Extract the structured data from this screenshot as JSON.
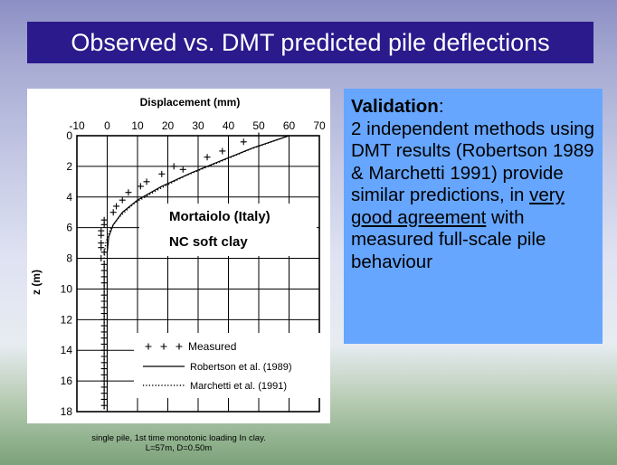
{
  "slide": {
    "title": "Observed vs. DMT predicted pile deflections"
  },
  "figure": {
    "overlay_line1": "Mortaiolo (Italy)",
    "overlay_line2": "NC soft clay"
  },
  "chart_data": {
    "type": "line",
    "xlabel": "Displacement (mm)",
    "ylabel": "z (m)",
    "xlim": [
      -10,
      70
    ],
    "ylim": [
      0,
      18
    ],
    "y_inverted": true,
    "x_axis_position": "top",
    "x_ticks": [
      -10,
      0,
      10,
      20,
      30,
      40,
      50,
      60,
      70
    ],
    "y_ticks": [
      0,
      2,
      4,
      6,
      8,
      10,
      12,
      14,
      16,
      18
    ],
    "grid": true,
    "legend_position": "bottom-right",
    "series": [
      {
        "name": "Measured",
        "style": "plus-markers",
        "points": [
          [
            50,
            0
          ],
          [
            45,
            0.4
          ],
          [
            38,
            1.0
          ],
          [
            33,
            1.4
          ],
          [
            25,
            2.2
          ],
          [
            22,
            2.0
          ],
          [
            18,
            2.5
          ],
          [
            13,
            3.0
          ],
          [
            11,
            3.3
          ],
          [
            7,
            3.7
          ],
          [
            5,
            4.2
          ],
          [
            3,
            4.6
          ],
          [
            2,
            5.0
          ],
          [
            -1,
            5.5
          ],
          [
            -1,
            5.8
          ],
          [
            -2,
            6.2
          ],
          [
            -2,
            6.5
          ],
          [
            -2,
            7.0
          ],
          [
            -2,
            7.3
          ],
          [
            -1,
            7.6
          ],
          [
            -2,
            8.0
          ],
          [
            -1,
            8.4
          ],
          [
            -1,
            8.8
          ],
          [
            -1,
            9.2
          ],
          [
            -1,
            9.6
          ],
          [
            -1,
            10.0
          ],
          [
            -1,
            10.4
          ],
          [
            -1,
            10.8
          ],
          [
            -1,
            11.2
          ],
          [
            -1,
            11.6
          ],
          [
            -1,
            12.0
          ],
          [
            -1,
            12.4
          ],
          [
            -1,
            12.8
          ],
          [
            -1,
            13.2
          ],
          [
            -1,
            13.6
          ],
          [
            -1,
            14.0
          ],
          [
            -1,
            14.4
          ],
          [
            -1,
            14.8
          ],
          [
            -1,
            15.2
          ],
          [
            -1,
            15.6
          ],
          [
            -1,
            16.0
          ],
          [
            -1,
            16.4
          ],
          [
            -1,
            16.8
          ],
          [
            -1,
            17.2
          ],
          [
            -1,
            17.6
          ]
        ]
      },
      {
        "name": "Robertson et al. (1989)",
        "style": "solid",
        "points": [
          [
            60,
            0
          ],
          [
            48,
            0.8
          ],
          [
            38,
            1.6
          ],
          [
            28,
            2.4
          ],
          [
            18,
            3.3
          ],
          [
            10,
            4.2
          ],
          [
            5,
            5.0
          ],
          [
            2,
            5.8
          ],
          [
            0.5,
            6.6
          ],
          [
            0,
            7.6
          ],
          [
            0,
            9
          ],
          [
            0,
            12
          ],
          [
            0,
            15
          ],
          [
            0,
            18
          ]
        ]
      },
      {
        "name": "Marchetti et al. (1991)",
        "style": "dotted",
        "points": [
          [
            60,
            0
          ],
          [
            47,
            0.9
          ],
          [
            36,
            1.8
          ],
          [
            26,
            2.6
          ],
          [
            17,
            3.5
          ],
          [
            9,
            4.4
          ],
          [
            4,
            5.3
          ],
          [
            1,
            6.1
          ],
          [
            -0.5,
            7.0
          ],
          [
            -1,
            8
          ],
          [
            -1,
            10
          ],
          [
            -1,
            12
          ],
          [
            -1,
            15
          ],
          [
            -1,
            18
          ]
        ]
      }
    ]
  },
  "validation": {
    "heading": "Validation",
    "heading_suffix": ":",
    "line1": "2 independent methods using DMT results (Robertson 1989 & Marchetti 1991) provide similar predictions, in ",
    "underlined": "very good agreement",
    "line2": " with measured full-scale pile behaviour"
  },
  "caption": {
    "line1": "single pile, 1st time monotonic loading In clay.",
    "line2": "L=57m, D=0.50m"
  },
  "colors": {
    "title_bar": "#2a1a8c",
    "textbox": "#66a6ff"
  }
}
